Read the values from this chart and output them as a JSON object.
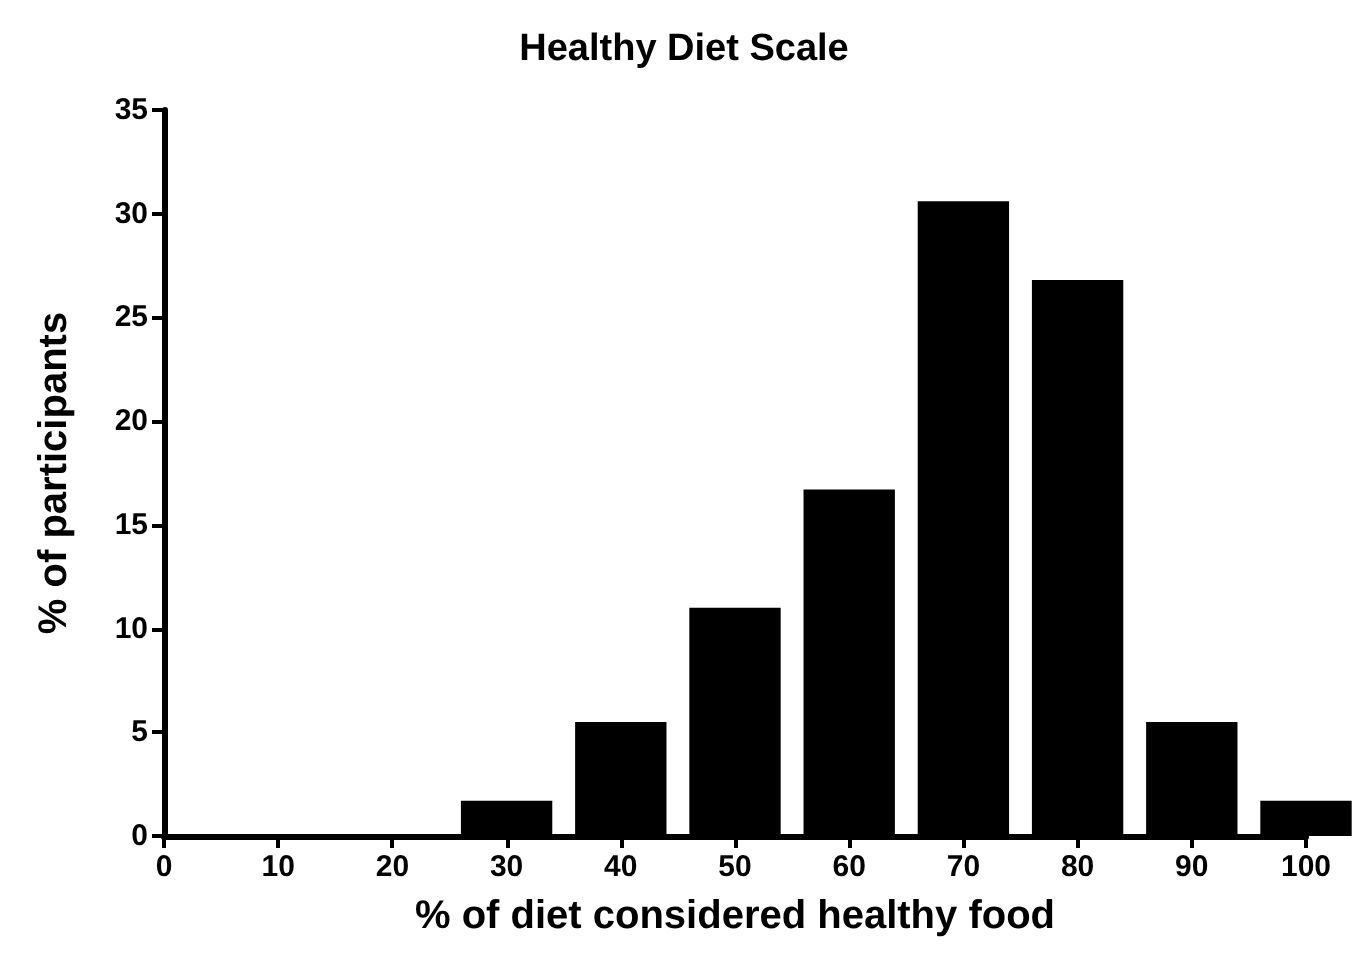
{
  "chart_data": {
    "type": "bar",
    "title": "Healthy Diet Scale",
    "xlabel": "% of diet considered healthy food",
    "ylabel": "% of participants",
    "x": [
      30,
      40,
      50,
      60,
      70,
      80,
      90,
      100
    ],
    "values": [
      1.7,
      5.5,
      11.0,
      16.7,
      30.6,
      26.8,
      5.5,
      1.7
    ],
    "color": "#000000",
    "xlim": [
      0,
      100
    ],
    "xticks": [
      0,
      10,
      20,
      30,
      40,
      50,
      60,
      70,
      80,
      90,
      100
    ],
    "ylim": [
      0,
      35
    ],
    "yticks": [
      0,
      5,
      10,
      15,
      20,
      25,
      30,
      35
    ]
  }
}
